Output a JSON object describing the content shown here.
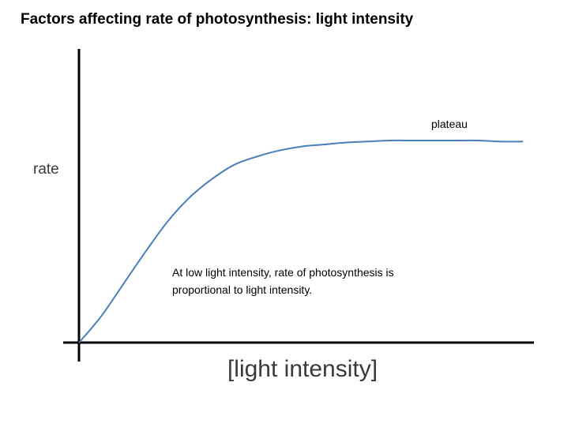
{
  "chart_data": {
    "type": "line",
    "title": "Factors affecting rate of photosynthesis: light intensity",
    "xlabel": "[light intensity]",
    "ylabel": "rate",
    "grid": false,
    "legend": "none",
    "xlim": [
      0,
      100
    ],
    "ylim": [
      0,
      100
    ],
    "series": [
      {
        "color": "#4a7ebb",
        "x": [
          0,
          5,
          10,
          15,
          20,
          25,
          30,
          35,
          40,
          45,
          50,
          55,
          60,
          65,
          70,
          75,
          80,
          85,
          90,
          95,
          100
        ],
        "y": [
          0,
          13,
          29,
          45,
          60,
          72,
          81,
          88,
          92,
          95,
          97,
          98,
          99,
          99.5,
          100,
          100,
          100,
          100,
          100,
          99.5,
          99.5
        ]
      }
    ],
    "annotations": [
      {
        "id": "plateau",
        "text": "plateau",
        "near_x": 85,
        "near_y": 100
      },
      {
        "id": "low-light",
        "lines": [
          "At low light intensity, rate of photosynthesis is",
          "proportional to light intensity."
        ],
        "near_x": 20,
        "near_y": 40
      }
    ]
  }
}
